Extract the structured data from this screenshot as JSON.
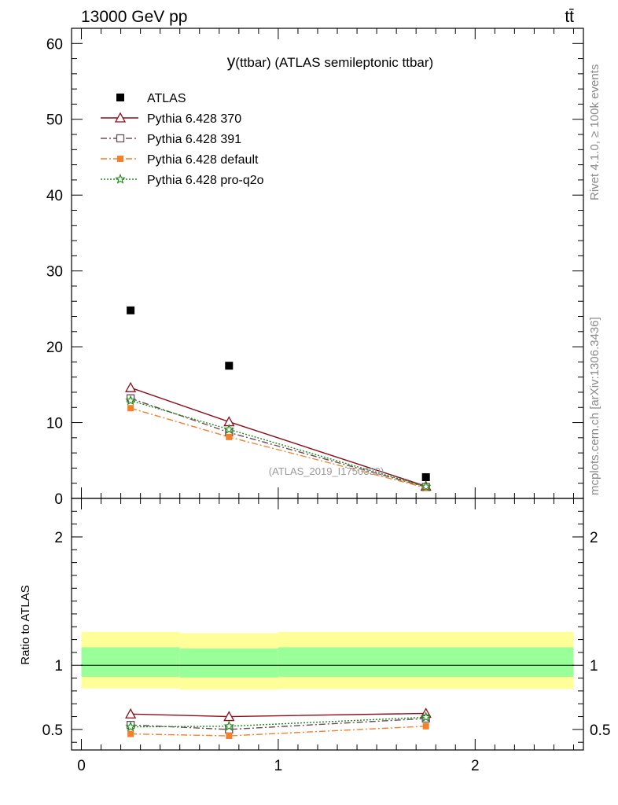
{
  "header": {
    "beam": "13000 GeV pp",
    "process": "tt̄"
  },
  "side_labels": {
    "rivet": "Rivet 4.1.0, ≥ 100k events",
    "mcplots": "mcplots.cern.ch [arXiv:1306.3436]"
  },
  "colors": {
    "atlas": "#000000",
    "p370": "#8b0e1d",
    "p391": "#6b4a5a",
    "pdefault": "#f57f2a",
    "pq2o": "#1f8c1a",
    "band_outer": "#ffff99",
    "band_inner": "#99ff99"
  },
  "chart_data": [
    {
      "type": "line",
      "panel": "main",
      "title": "y(ttbar) (ATLAS semileptonic ttbar)",
      "title_main": "y",
      "title_rest": "(ttbar) (ATLAS semileptonic ttbar)",
      "watermark": "(ATLAS_2019_I1750330)",
      "xlim": [
        -0.05,
        2.55
      ],
      "ylim": [
        0,
        62
      ],
      "yticks": [
        0,
        10,
        20,
        30,
        40,
        50,
        60
      ],
      "ytick_labels": [
        "0",
        "10",
        "20",
        "30",
        "40",
        "50",
        "60"
      ],
      "legend_position": "top-left",
      "series": [
        {
          "key": "atlas",
          "name": "ATLAS",
          "style": "data",
          "x": [
            0.25,
            0.75,
            1.75
          ],
          "y": [
            24.8,
            17.5,
            2.8
          ]
        },
        {
          "key": "p370",
          "name": "Pythia 6.428 370",
          "style": "solid",
          "marker": "triangle",
          "x": [
            0.25,
            0.75,
            1.75
          ],
          "y": [
            14.6,
            10.1,
            1.6
          ]
        },
        {
          "key": "p391",
          "name": "Pythia 6.428 391",
          "style": "dashdot",
          "marker": "square-open",
          "x": [
            0.25,
            0.75,
            1.75
          ],
          "y": [
            13.2,
            8.7,
            1.5
          ]
        },
        {
          "key": "pdefault",
          "name": "Pythia 6.428 default",
          "style": "dashdot",
          "marker": "square-filled",
          "x": [
            0.25,
            0.75,
            1.75
          ],
          "y": [
            11.9,
            8.1,
            1.4
          ]
        },
        {
          "key": "pq2o",
          "name": "Pythia 6.428 pro-q2o",
          "style": "dotted",
          "marker": "star",
          "x": [
            0.25,
            0.75,
            1.75
          ],
          "y": [
            12.9,
            9.1,
            1.55
          ]
        }
      ]
    },
    {
      "type": "line",
      "panel": "ratio",
      "ylabel": "Ratio to ATLAS",
      "xlim": [
        -0.05,
        2.55
      ],
      "ylim": [
        0.34,
        2.3
      ],
      "yticks": [
        0.5,
        1,
        2
      ],
      "ytick_labels": [
        "0.5",
        "1",
        "2"
      ],
      "xticks": [
        0,
        1,
        2
      ],
      "xtick_labels": [
        "0",
        "1",
        "2"
      ],
      "bands": {
        "x_edges": [
          0,
          0.5,
          1.0,
          2.5
        ],
        "outer_low": [
          0.82,
          0.81,
          0.815
        ],
        "outer_high": [
          1.26,
          1.25,
          1.26
        ],
        "inner_low": [
          0.91,
          0.905,
          0.91
        ],
        "inner_high": [
          1.14,
          1.13,
          1.14
        ]
      },
      "series": [
        {
          "key": "p370",
          "name": "Pythia 6.428 370",
          "style": "solid",
          "marker": "triangle",
          "x": [
            0.25,
            0.75,
            1.75
          ],
          "y": [
            0.62,
            0.6,
            0.625
          ],
          "err": [
            0.0,
            0.0,
            0.02
          ]
        },
        {
          "key": "p391",
          "name": "Pythia 6.428 391",
          "style": "dashdot",
          "marker": "square-open",
          "x": [
            0.25,
            0.75,
            1.75
          ],
          "y": [
            0.535,
            0.5,
            0.585
          ],
          "err": [
            0.0,
            0.01,
            0.015
          ]
        },
        {
          "key": "pdefault",
          "name": "Pythia 6.428 default",
          "style": "dashdot",
          "marker": "square-filled",
          "x": [
            0.25,
            0.75,
            1.75
          ],
          "y": [
            0.465,
            0.45,
            0.525
          ],
          "err": [
            0.015,
            0.015,
            0.025
          ]
        },
        {
          "key": "pq2o",
          "name": "Pythia 6.428 pro-q2o",
          "style": "dotted",
          "marker": "star",
          "x": [
            0.25,
            0.75,
            1.75
          ],
          "y": [
            0.52,
            0.525,
            0.595
          ],
          "err": [
            0.0,
            0.0,
            0.015
          ]
        }
      ]
    }
  ]
}
